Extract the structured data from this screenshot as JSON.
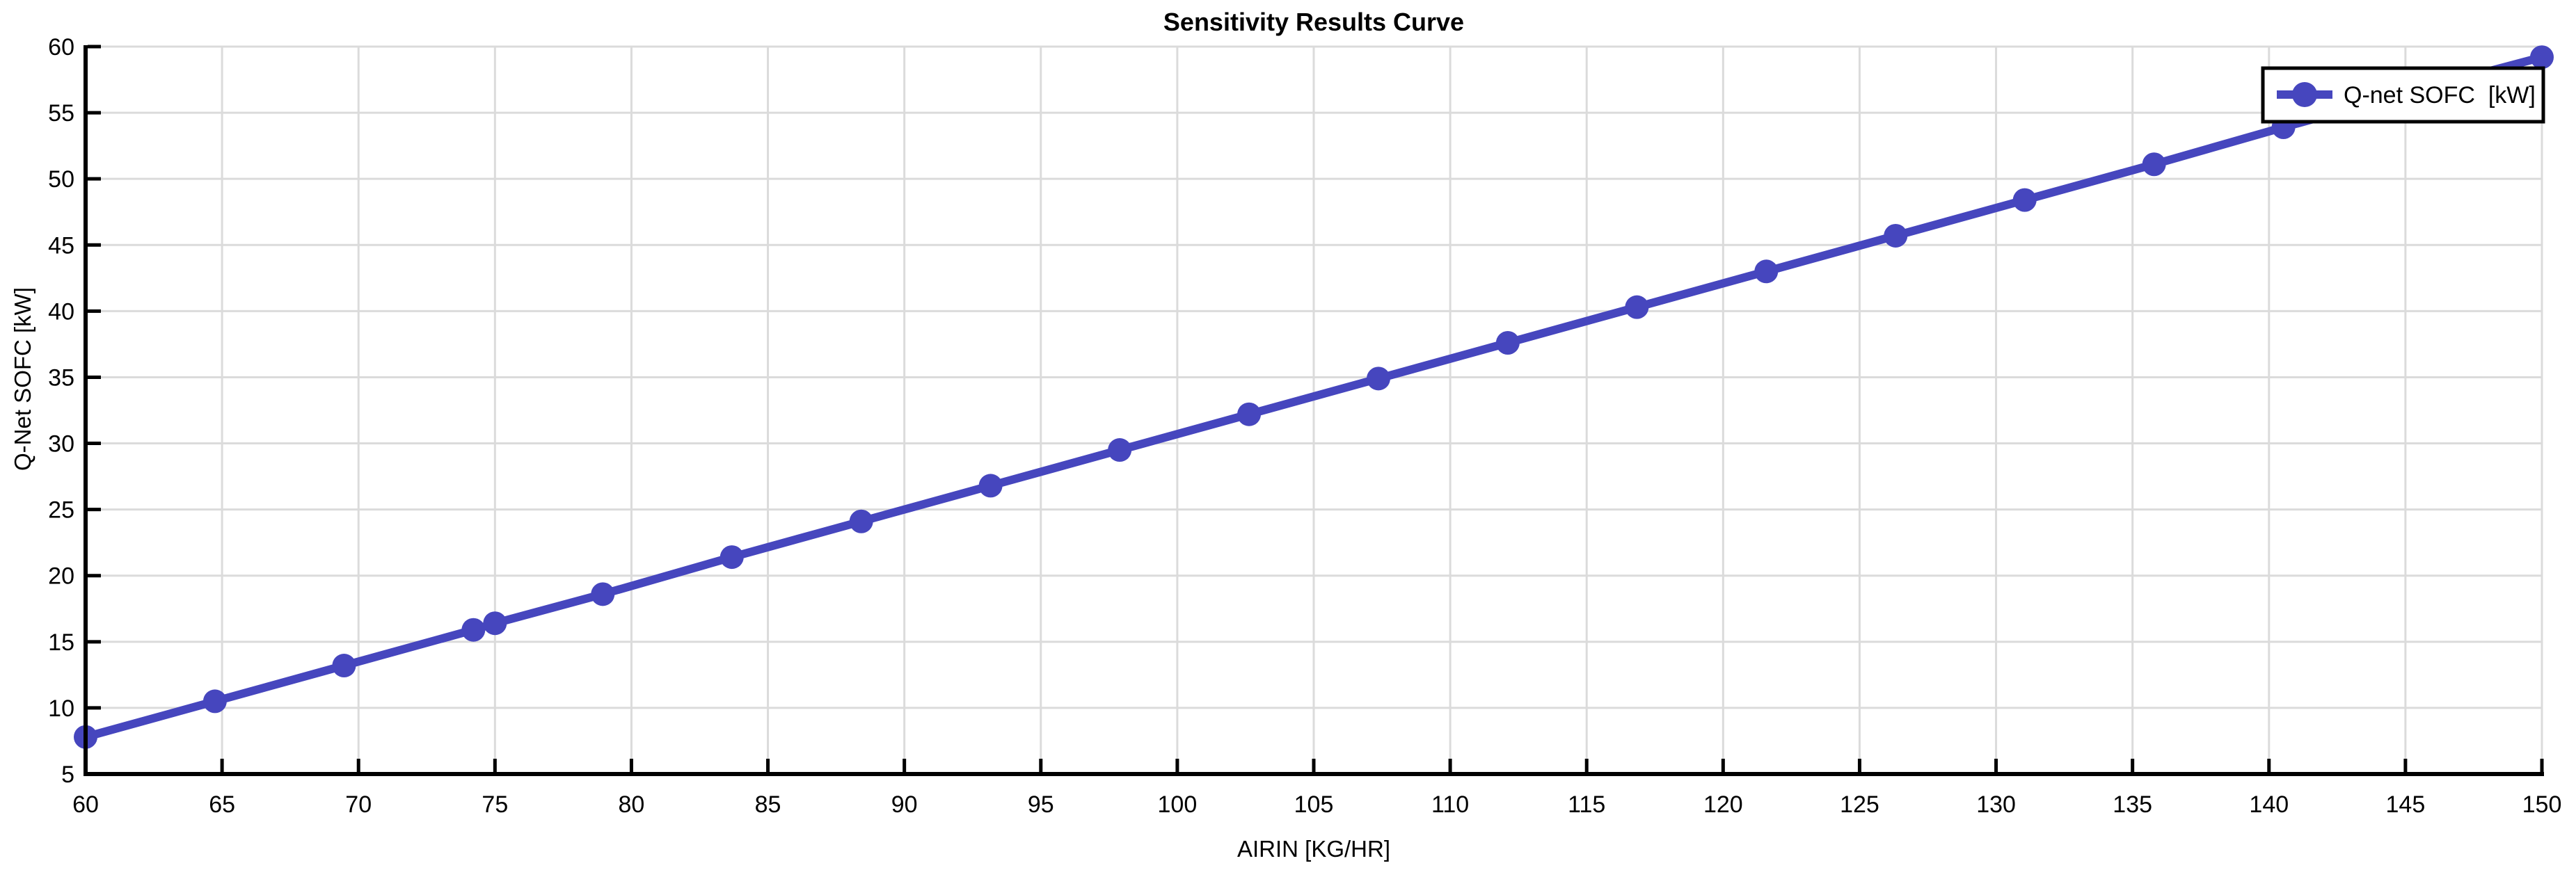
{
  "title": "Sensitivity Results Curve",
  "chart_data": {
    "type": "line",
    "title": "Sensitivity Results Curve",
    "xlabel": "AIRIN [KG/HR]",
    "ylabel": "Q-Net SOFC [kW]",
    "xlim": [
      60,
      150
    ],
    "ylim": [
      5,
      60
    ],
    "xticks": [
      60,
      65,
      70,
      75,
      80,
      85,
      90,
      95,
      100,
      105,
      110,
      115,
      120,
      125,
      130,
      135,
      140,
      145,
      150
    ],
    "yticks": [
      5,
      10,
      15,
      20,
      25,
      30,
      35,
      40,
      45,
      50,
      55,
      60
    ],
    "grid": true,
    "legend": {
      "position": "top-right",
      "border": true,
      "label": "Q-net SOFC  [kW]"
    },
    "series": [
      {
        "name": "Q-net SOFC  [kW]",
        "marker": "circle",
        "x": [
          60,
          64.74,
          69.47,
          74.21,
          75,
          78.95,
          83.68,
          88.42,
          93.16,
          97.89,
          102.63,
          107.37,
          112.11,
          116.84,
          121.58,
          126.32,
          131.05,
          135.79,
          140.53,
          145.26,
          150
        ],
        "y": [
          7.8,
          10.5,
          13.2,
          15.9,
          16.4,
          18.6,
          21.4,
          24.1,
          26.8,
          29.5,
          32.2,
          34.9,
          37.6,
          40.3,
          43.0,
          45.7,
          48.4,
          51.1,
          53.9,
          56.6,
          59.2
        ]
      }
    ]
  },
  "colors": {
    "series": "#4646BE",
    "grid": "#DBDBDB",
    "axis": "#000000",
    "text": "#000000",
    "background": "#FFFFFF",
    "legend_border": "#000000"
  }
}
